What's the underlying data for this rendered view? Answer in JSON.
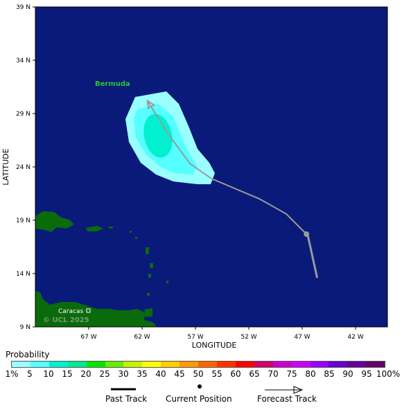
{
  "map": {
    "ylabel": "LATITUDE",
    "xlabel": "LONGITUDE",
    "lat_ticks": [
      "39 N",
      "34 N",
      "29 N",
      "24 N",
      "19 N",
      "14 N",
      "9 N"
    ],
    "lon_ticks": [
      "67 W",
      "62 W",
      "57 W",
      "52 W",
      "47 W",
      "42 W"
    ],
    "place_labels": {
      "bermuda": "Bermuda",
      "caracas": "Caracas"
    },
    "watermark": "© UCL 2025",
    "colors": {
      "ocean": "#0a1a7a",
      "land": "#0a6b0a",
      "bermuda_label": "#2ec42e",
      "track": "#9a9a9a"
    },
    "past_track": [
      [
        -45.6,
        13.6
      ],
      [
        -46.5,
        17.7
      ]
    ],
    "current_position": [
      -46.6,
      17.7
    ],
    "forecast_track": [
      [
        -46.6,
        17.7
      ],
      [
        -48.5,
        19.6
      ],
      [
        -51.0,
        21.0
      ],
      [
        -55.5,
        22.9
      ],
      [
        -57.5,
        24.3
      ],
      [
        -59.5,
        27.0
      ],
      [
        -61.5,
        30.2
      ]
    ]
  },
  "legend": {
    "title": "Probability",
    "segments": [
      "#99ffff",
      "#55ffff",
      "#00f0d0",
      "#00e896",
      "#00e600",
      "#66ee00",
      "#c8f000",
      "#ffff00",
      "#ffcc00",
      "#ff9900",
      "#ff6600",
      "#ff3300",
      "#ff0000",
      "#cc0066",
      "#cc00cc",
      "#cc00ff",
      "#9900ff",
      "#6600cc",
      "#660099",
      "#660066"
    ],
    "labels": [
      "1%",
      "5",
      "10",
      "15",
      "20",
      "25",
      "30",
      "35",
      "40",
      "45",
      "50",
      "55",
      "60",
      "65",
      "70",
      "75",
      "80",
      "85",
      "90",
      "95",
      "100%"
    ]
  },
  "key": {
    "past_track": "Past Track",
    "current_position": "Current Position",
    "forecast_track": "Forecast Track"
  }
}
